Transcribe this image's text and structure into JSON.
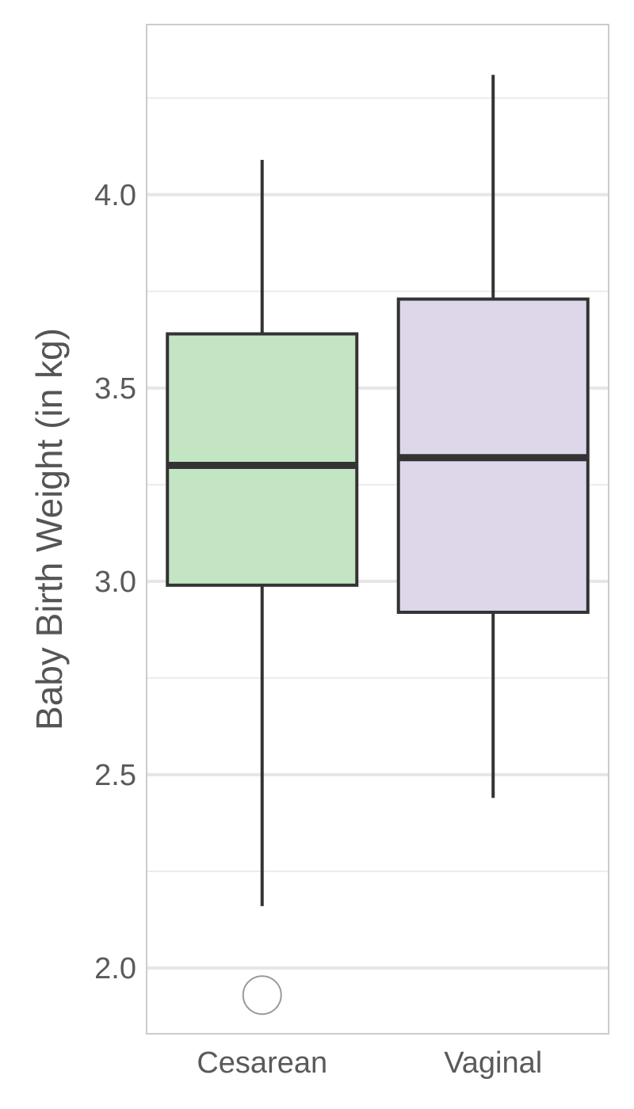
{
  "chart_data": {
    "type": "boxplot",
    "title": "",
    "xlabel": "",
    "ylabel": "Baby Birth Weight (in kg)",
    "ylim": [
      1.83,
      4.44
    ],
    "yticks": [
      2.0,
      2.5,
      3.0,
      3.5,
      4.0
    ],
    "ytick_labels": [
      "2.0",
      "2.5",
      "3.0",
      "3.5",
      "4.0"
    ],
    "minor_yticks": [
      2.25,
      2.75,
      3.25,
      3.75,
      4.25
    ],
    "grid": true,
    "legend": "none",
    "categories": [
      "Cesarean",
      "Vaginal"
    ],
    "boxes": [
      {
        "category": "Cesarean",
        "whisker_low": 2.16,
        "q1": 2.99,
        "median": 3.3,
        "q3": 3.64,
        "whisker_high": 4.09,
        "outliers": [
          1.93
        ],
        "color": "#c2e4c1"
      },
      {
        "category": "Vaginal",
        "whisker_low": 2.44,
        "q1": 2.92,
        "median": 3.32,
        "q3": 3.73,
        "whisker_high": 4.31,
        "outliers": [],
        "color": "#ddd6e9"
      }
    ]
  }
}
